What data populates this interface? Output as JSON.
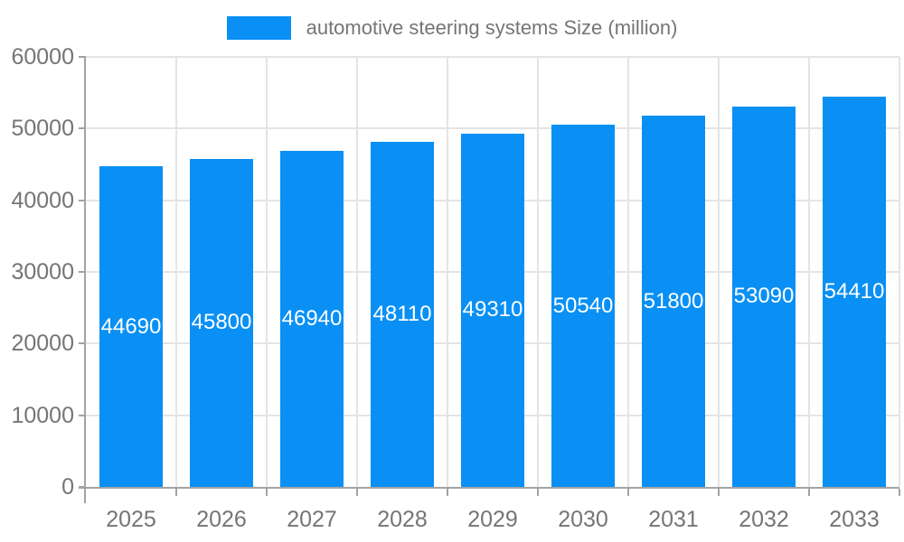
{
  "colors": {
    "bar": "#0a90f4",
    "grid": "#e4e4e4",
    "axis": "#a3a3a3",
    "text": "#757575",
    "bar_label": "#ffffff",
    "background": "#ffffff"
  },
  "chart_data": {
    "type": "bar",
    "title": "automotive steering systems Size (million)",
    "categories": [
      "2025",
      "2026",
      "2027",
      "2028",
      "2029",
      "2030",
      "2031",
      "2032",
      "2033"
    ],
    "values": [
      44690,
      45800,
      46940,
      48110,
      49310,
      50540,
      51800,
      53090,
      54410
    ],
    "xlabel": "",
    "ylabel": "",
    "ylim": [
      0,
      60000
    ],
    "yticks": [
      0,
      10000,
      20000,
      30000,
      40000,
      50000,
      60000
    ],
    "grid": true,
    "legend_position": "top",
    "bar_value_labels": true
  }
}
